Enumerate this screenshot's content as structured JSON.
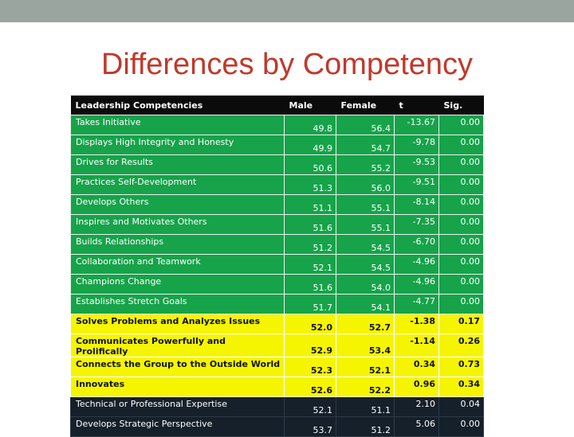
{
  "slide": {
    "title": "Differences by Competency"
  },
  "table": {
    "headers": [
      "Leadership Competencies",
      "Male",
      "Female",
      "t",
      "Sig."
    ],
    "rows": [
      {
        "name": "Takes Initiative",
        "male": "49.8",
        "female": "56.4",
        "t": "-13.67",
        "sig": "0.00",
        "group": "green"
      },
      {
        "name": "Displays High Integrity and Honesty",
        "male": "49.9",
        "female": "54.7",
        "t": "-9.78",
        "sig": "0.00",
        "group": "green"
      },
      {
        "name": "Drives for Results",
        "male": "50.6",
        "female": "55.2",
        "t": "-9.53",
        "sig": "0.00",
        "group": "green"
      },
      {
        "name": "Practices Self-Development",
        "male": "51.3",
        "female": "56.0",
        "t": "-9.51",
        "sig": "0.00",
        "group": "green"
      },
      {
        "name": "Develops Others",
        "male": "51.1",
        "female": "55.1",
        "t": "-8.14",
        "sig": "0.00",
        "group": "green"
      },
      {
        "name": "Inspires and Motivates Others",
        "male": "51.6",
        "female": "55.1",
        "t": "-7.35",
        "sig": "0.00",
        "group": "green"
      },
      {
        "name": "Builds Relationships",
        "male": "51.2",
        "female": "54.5",
        "t": "-6.70",
        "sig": "0.00",
        "group": "green"
      },
      {
        "name": "Collaboration and Teamwork",
        "male": "52.1",
        "female": "54.5",
        "t": "-4.96",
        "sig": "0.00",
        "group": "green"
      },
      {
        "name": "Champions Change",
        "male": "51.6",
        "female": "54.0",
        "t": "-4.96",
        "sig": "0.00",
        "group": "green"
      },
      {
        "name": "Establishes Stretch Goals",
        "male": "51.7",
        "female": "54.1",
        "t": "-4.77",
        "sig": "0.00",
        "group": "green"
      },
      {
        "name": "Solves Problems and Analyzes Issues",
        "male": "52.0",
        "female": "52.7",
        "t": "-1.38",
        "sig": "0.17",
        "group": "yellow"
      },
      {
        "name": "Communicates Powerfully and Prolifically",
        "male": "52.9",
        "female": "53.4",
        "t": "-1.14",
        "sig": "0.26",
        "group": "yellow"
      },
      {
        "name": "Connects the Group to the Outside World",
        "male": "52.3",
        "female": "52.1",
        "t": "0.34",
        "sig": "0.73",
        "group": "yellow"
      },
      {
        "name": "Innovates",
        "male": "52.6",
        "female": "52.2",
        "t": "0.96",
        "sig": "0.34",
        "group": "yellow"
      },
      {
        "name": "Technical or Professional Expertise",
        "male": "52.1",
        "female": "51.1",
        "t": "2.10",
        "sig": "0.04",
        "group": "dark"
      },
      {
        "name": "Develops Strategic Perspective",
        "male": "53.7",
        "female": "51.2",
        "t": "5.06",
        "sig": "0.00",
        "group": "dark"
      }
    ]
  },
  "colors": {
    "title": "#c0392b",
    "header_bg": "#0b0b0b",
    "green": "#16a34a",
    "yellow": "#f5f500",
    "dark": "#15202b",
    "topbar": "#9aa5a0"
  }
}
